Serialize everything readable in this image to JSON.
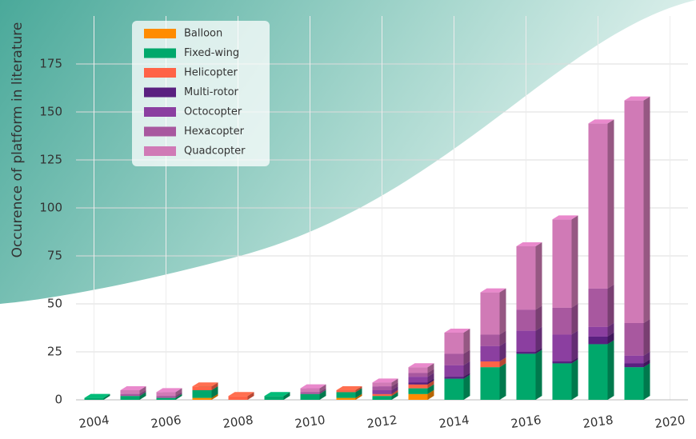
{
  "chart_data": {
    "type": "bar",
    "stacked": true,
    "y_label": "Occurence of platform in literature",
    "x": [
      2004,
      2005,
      2006,
      2007,
      2008,
      2009,
      2010,
      2011,
      2012,
      2013,
      2014,
      2015,
      2016,
      2017,
      2018,
      2019
    ],
    "xlim": [
      2003.5,
      2020.5
    ],
    "xticks": [
      2004,
      2006,
      2008,
      2010,
      2012,
      2014,
      2016,
      2018,
      2020
    ],
    "ylim": [
      0,
      200
    ],
    "yticks": [
      0,
      25,
      50,
      75,
      100,
      125,
      150,
      175
    ],
    "grid": true,
    "legend": "top-left",
    "series": [
      {
        "name": "Balloon",
        "color": "#ff8c00",
        "values": [
          0,
          0,
          0,
          1,
          0,
          0,
          0,
          1,
          0,
          3,
          0,
          0,
          0,
          0,
          0,
          0
        ]
      },
      {
        "name": "Fixed-wing",
        "color": "#00a86b",
        "values": [
          1,
          2,
          1,
          4,
          0,
          2,
          3,
          3,
          2,
          3,
          11,
          17,
          24,
          19,
          29,
          17
        ]
      },
      {
        "name": "Helicopter",
        "color": "#ff6347",
        "values": [
          0,
          0,
          0,
          2,
          2,
          0,
          0,
          1,
          1,
          2,
          0,
          3,
          0,
          0,
          0,
          0
        ]
      },
      {
        "name": "Multi-rotor",
        "color": "#5a2080",
        "values": [
          0,
          0,
          0,
          0,
          0,
          0,
          0,
          0,
          0,
          1,
          1,
          0,
          1,
          1,
          4,
          2
        ]
      },
      {
        "name": "Octocopter",
        "color": "#8b3fa0",
        "values": [
          0,
          0,
          0,
          0,
          0,
          0,
          0,
          0,
          2,
          3,
          6,
          8,
          11,
          14,
          5,
          4
        ]
      },
      {
        "name": "Hexacopter",
        "color": "#a8589f",
        "values": [
          0,
          1,
          1,
          0,
          0,
          0,
          1,
          0,
          2,
          2,
          6,
          6,
          11,
          14,
          20,
          17
        ]
      },
      {
        "name": "Quadcopter",
        "color": "#d07ab6",
        "values": [
          0,
          2,
          2,
          0,
          0,
          0,
          2,
          0,
          2,
          3,
          11,
          22,
          33,
          46,
          86,
          116
        ]
      }
    ]
  }
}
